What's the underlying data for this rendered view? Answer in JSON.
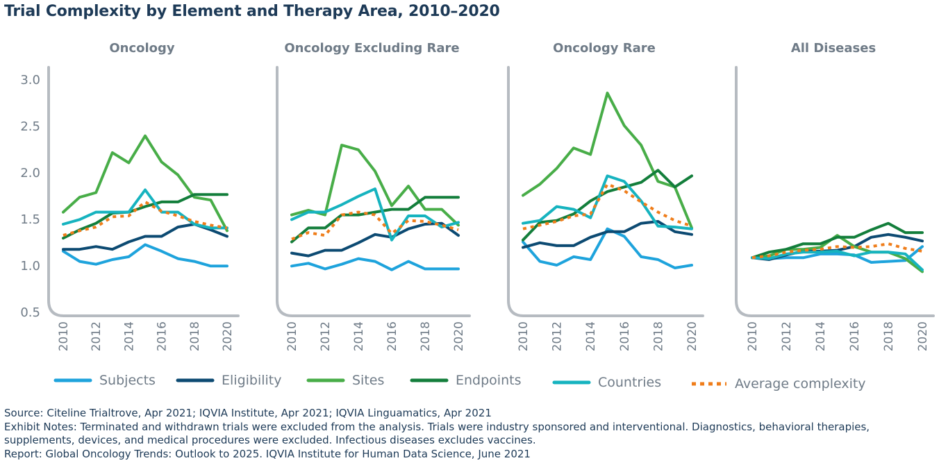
{
  "title": "Trial Complexity by Element and Therapy Area, 2010–2020",
  "colors": {
    "text": "#1d3a57",
    "axis_text": "#6f7b87",
    "axis_line": "#b6bbc1",
    "subjects": "#1ea3dc",
    "eligibility": "#0c4a72",
    "sites": "#48ad48",
    "endpoints": "#137e3b",
    "countries": "#16b3bf",
    "average": "#ef7d1a"
  },
  "chart_data": {
    "type": "line",
    "x": [
      2010,
      2011,
      2012,
      2013,
      2014,
      2015,
      2016,
      2017,
      2018,
      2019,
      2020
    ],
    "x_tick_labels": [
      "2010",
      "2012",
      "2014",
      "2016",
      "2018",
      "2020"
    ],
    "y_tick_labels": [
      "3.0",
      "2.5",
      "2.0",
      "1.5",
      "1.0",
      "0.5"
    ],
    "ylim": [
      0.5,
      3.0
    ],
    "legend": [
      {
        "key": "subjects",
        "label": "Subjects",
        "style": "solid"
      },
      {
        "key": "eligibility",
        "label": "Eligibility",
        "style": "solid"
      },
      {
        "key": "sites",
        "label": "Sites",
        "style": "solid"
      },
      {
        "key": "endpoints",
        "label": "Endpoints",
        "style": "solid"
      },
      {
        "key": "countries",
        "label": "Countries",
        "style": "solid"
      },
      {
        "key": "average",
        "label": "Average complexity",
        "style": "dashed"
      }
    ],
    "panels": [
      {
        "name": "Oncology",
        "series": [
          {
            "key": "subjects",
            "values": [
              1.15,
              1.04,
              1.01,
              1.06,
              1.09,
              1.22,
              1.15,
              1.07,
              1.04,
              0.99,
              0.99
            ]
          },
          {
            "key": "eligibility",
            "values": [
              1.17,
              1.17,
              1.2,
              1.17,
              1.25,
              1.31,
              1.31,
              1.41,
              1.44,
              1.38,
              1.31
            ]
          },
          {
            "key": "sites",
            "values": [
              1.57,
              1.73,
              1.78,
              2.21,
              2.1,
              2.39,
              2.11,
              1.97,
              1.73,
              1.7,
              1.37
            ]
          },
          {
            "key": "endpoints",
            "values": [
              1.29,
              1.38,
              1.45,
              1.56,
              1.57,
              1.63,
              1.68,
              1.68,
              1.76,
              1.76,
              1.76
            ]
          },
          {
            "key": "countries",
            "values": [
              1.44,
              1.49,
              1.57,
              1.57,
              1.57,
              1.81,
              1.57,
              1.57,
              1.44,
              1.4,
              1.4
            ]
          },
          {
            "key": "average",
            "values": [
              1.32,
              1.37,
              1.41,
              1.52,
              1.53,
              1.68,
              1.58,
              1.53,
              1.47,
              1.43,
              1.4
            ]
          }
        ]
      },
      {
        "name": "Oncology Excluding Rare",
        "series": [
          {
            "key": "subjects",
            "values": [
              0.99,
              1.02,
              0.96,
              1.01,
              1.07,
              1.04,
              0.95,
              1.04,
              0.96,
              0.96,
              0.96
            ]
          },
          {
            "key": "eligibility",
            "values": [
              1.13,
              1.1,
              1.16,
              1.16,
              1.24,
              1.33,
              1.3,
              1.39,
              1.44,
              1.45,
              1.32
            ]
          },
          {
            "key": "sites",
            "values": [
              1.54,
              1.59,
              1.54,
              2.29,
              2.24,
              2.01,
              1.64,
              1.85,
              1.6,
              1.6,
              1.43
            ]
          },
          {
            "key": "endpoints",
            "values": [
              1.25,
              1.4,
              1.4,
              1.54,
              1.54,
              1.57,
              1.6,
              1.6,
              1.73,
              1.73,
              1.73
            ]
          },
          {
            "key": "countries",
            "values": [
              1.49,
              1.57,
              1.57,
              1.65,
              1.74,
              1.82,
              1.27,
              1.53,
              1.53,
              1.41,
              1.46
            ]
          },
          {
            "key": "average",
            "values": [
              1.28,
              1.35,
              1.32,
              1.54,
              1.57,
              1.54,
              1.34,
              1.48,
              1.47,
              1.43,
              1.38
            ]
          }
        ]
      },
      {
        "name": "Oncology Rare",
        "series": [
          {
            "key": "subjects",
            "values": [
              1.25,
              1.04,
              1.0,
              1.09,
              1.06,
              1.39,
              1.31,
              1.09,
              1.06,
              0.97,
              1.0
            ]
          },
          {
            "key": "eligibility",
            "values": [
              1.19,
              1.24,
              1.21,
              1.21,
              1.3,
              1.36,
              1.36,
              1.45,
              1.47,
              1.36,
              1.33
            ]
          },
          {
            "key": "sites",
            "values": [
              1.75,
              1.87,
              2.04,
              2.26,
              2.19,
              2.85,
              2.5,
              2.29,
              1.9,
              1.84,
              1.4
            ]
          },
          {
            "key": "endpoints",
            "values": [
              1.27,
              1.46,
              1.48,
              1.55,
              1.69,
              1.79,
              1.84,
              1.89,
              2.02,
              1.84,
              1.96
            ]
          },
          {
            "key": "countries",
            "values": [
              1.45,
              1.48,
              1.63,
              1.6,
              1.51,
              1.96,
              1.9,
              1.69,
              1.42,
              1.41,
              1.39
            ]
          },
          {
            "key": "average",
            "values": [
              1.39,
              1.43,
              1.47,
              1.53,
              1.55,
              1.87,
              1.8,
              1.68,
              1.57,
              1.48,
              1.42
            ]
          }
        ]
      },
      {
        "name": "All Diseases",
        "series": [
          {
            "key": "subjects",
            "values": [
              1.08,
              1.07,
              1.08,
              1.08,
              1.12,
              1.12,
              1.11,
              1.03,
              1.04,
              1.05,
              1.2
            ]
          },
          {
            "key": "eligibility",
            "values": [
              1.08,
              1.06,
              1.11,
              1.15,
              1.15,
              1.16,
              1.2,
              1.3,
              1.33,
              1.3,
              1.26
            ]
          },
          {
            "key": "sites",
            "values": [
              1.08,
              1.1,
              1.17,
              1.17,
              1.19,
              1.32,
              1.2,
              1.14,
              1.14,
              1.07,
              0.93
            ]
          },
          {
            "key": "endpoints",
            "values": [
              1.08,
              1.14,
              1.17,
              1.23,
              1.23,
              1.3,
              1.3,
              1.38,
              1.45,
              1.35,
              1.35
            ]
          },
          {
            "key": "countries",
            "values": [
              1.08,
              1.07,
              1.12,
              1.14,
              1.14,
              1.15,
              1.1,
              1.14,
              1.14,
              1.12,
              0.95
            ]
          },
          {
            "key": "average",
            "values": [
              1.08,
              1.1,
              1.14,
              1.16,
              1.17,
              1.2,
              1.19,
              1.2,
              1.23,
              1.18,
              1.15
            ]
          }
        ]
      }
    ]
  },
  "footnotes": {
    "source": "Source: Citeline Trialtrove, Apr 2021; IQVIA Institute, Apr 2021; IQVIA Linguamatics, Apr 2021",
    "exhibit_notes": "Exhibit Notes: Terminated and withdrawn trials were excluded from the analysis. Trials were industry sponsored and interventional. Diagnostics, behavioral therapies, supplements, devices, and medical procedures were excluded. Infectious diseases excludes vaccines.",
    "report": "Report: Global Oncology Trends: Outlook to 2025. IQVIA Institute for Human Data Science, June 2021"
  }
}
